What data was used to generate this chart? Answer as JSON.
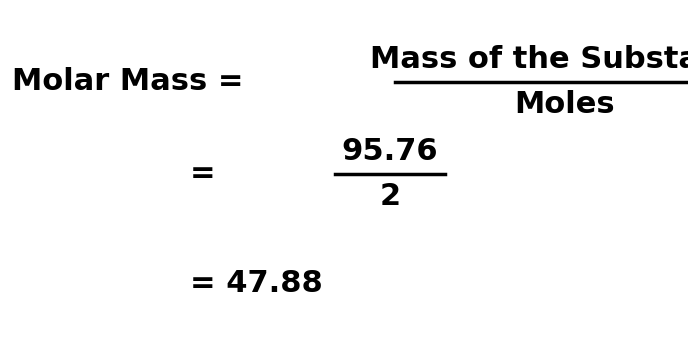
{
  "bg_color": "#ffffff",
  "text_color": "#000000",
  "line1_left": "Molar Mass = ",
  "line1_numerator": "Mass of the Substance",
  "line1_denominator": "Moles",
  "line2_equals": "=",
  "line2_numerator": "95.76",
  "line2_denominator": "2",
  "line3": "= 47.88",
  "fontsize": 22,
  "fontweight": "bold",
  "fontfamily": "DejaVu Sans",
  "fig_width": 6.88,
  "fig_height": 3.52,
  "dpi": 100
}
